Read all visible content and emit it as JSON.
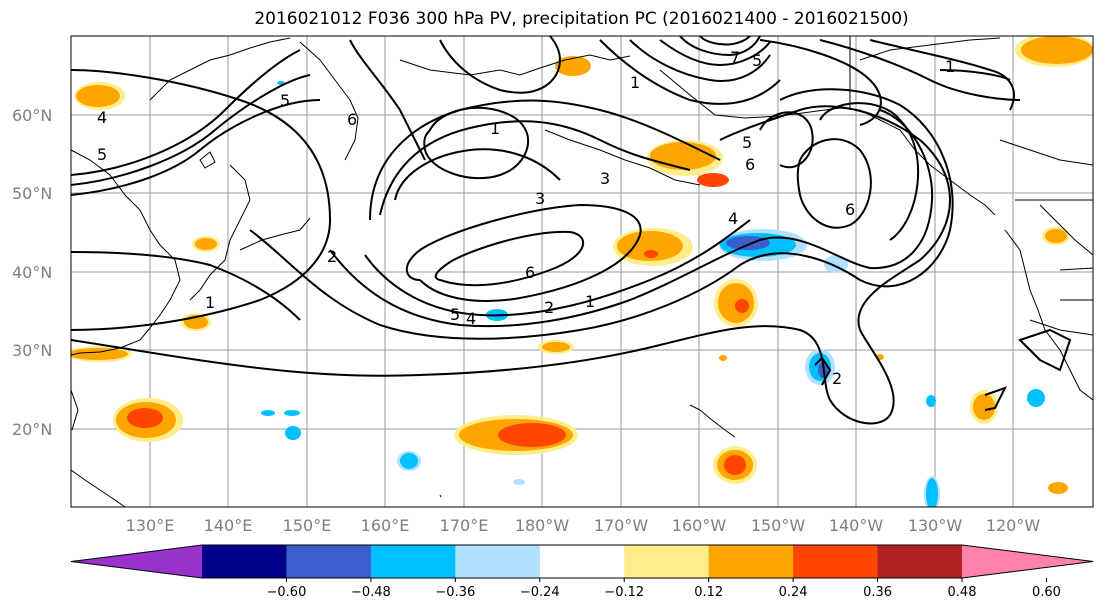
{
  "title": "2016021012 F036 300 hPa PV, precipitation PC (2016021400 - 2016021500)",
  "lat_labels": [
    "60°N",
    "50°N",
    "40°N",
    "30°N",
    "20°N"
  ],
  "lon_labels": [
    "130°E",
    "140°E",
    "150°E",
    "160°E",
    "170°E",
    "180°W",
    "170°W",
    "160°W",
    "150°W",
    "140°W",
    "130°W",
    "120°W"
  ],
  "colorbar": {
    "ticks": [
      "−0.60",
      "−0.48",
      "−0.36",
      "−0.24",
      "−0.12",
      "0.12",
      "0.24",
      "0.36",
      "0.48",
      "0.60"
    ],
    "colors": [
      "#9932cc",
      "#00008b",
      "#3a5fcd",
      "#00bfff",
      "#b0e2ff",
      "#ffffff",
      "#ffec8b",
      "#ffa500",
      "#ff4500",
      "#b22222",
      "#ff82ab"
    ]
  },
  "contour_labels": [
    "1",
    "2",
    "3",
    "4",
    "5",
    "6",
    "7"
  ],
  "contour_text": {
    "l_a": "5",
    "l_b": "4",
    "l_c": "5",
    "l_d": "1",
    "l_e": "3",
    "l_f": "3",
    "l_g": "6",
    "l_h": "5",
    "l_i": "4",
    "l_j": "2",
    "l_k": "1",
    "l_l": "2",
    "l_m": "4",
    "l_n": "6",
    "l_o": "6",
    "l_p": "7",
    "l_q": "5",
    "l_r": "1",
    "l_s": "1",
    "l_t": "6",
    "l_u": "5",
    "l_v": "1",
    "l_w": "2"
  }
}
